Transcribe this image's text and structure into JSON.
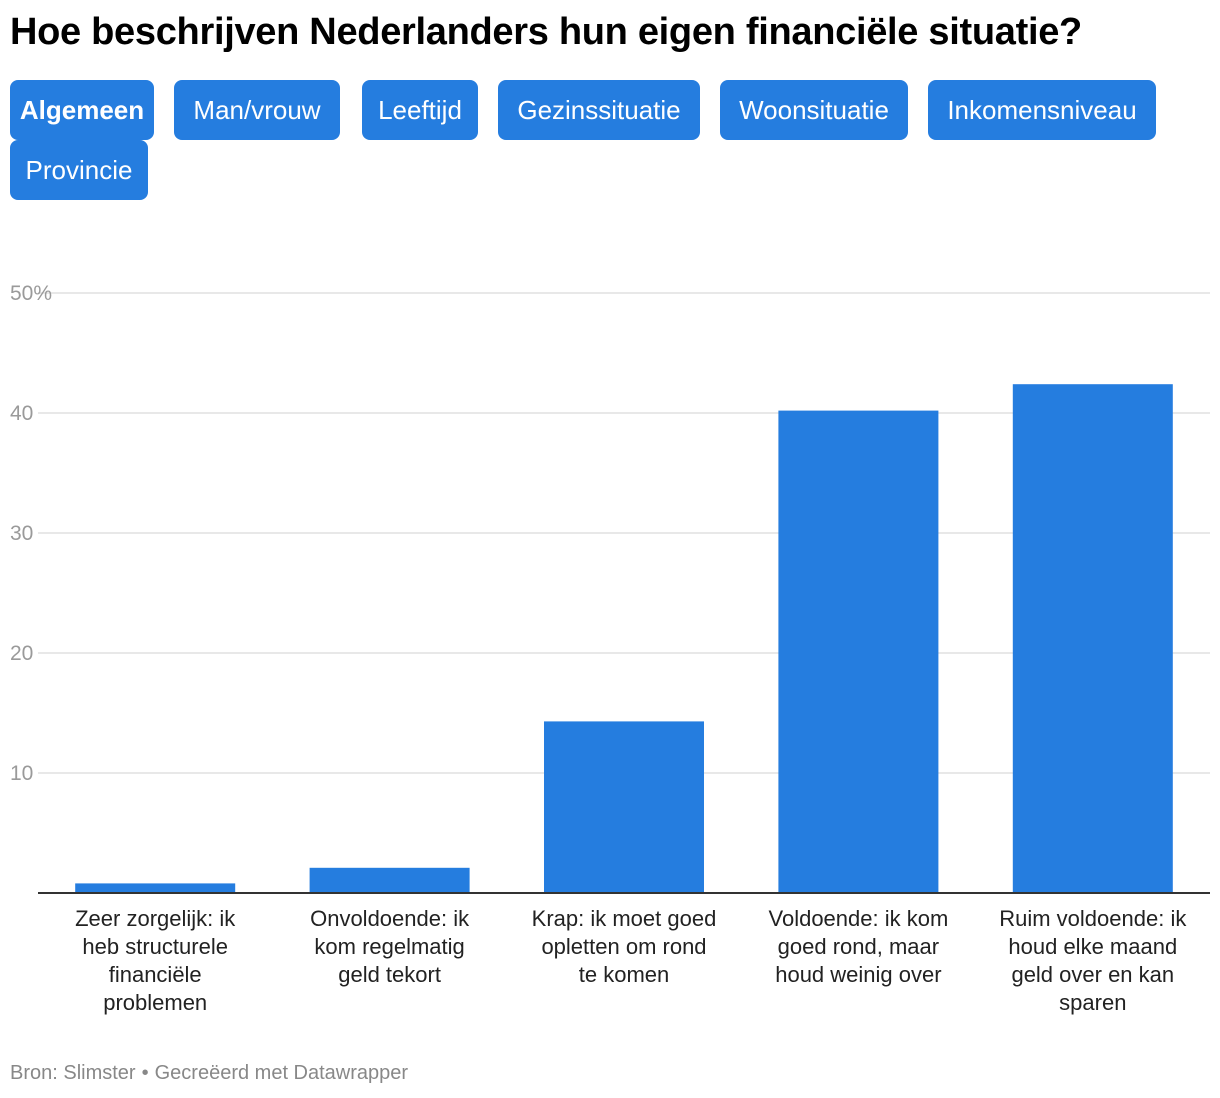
{
  "title": "Hoe beschrijven Nederlanders hun eigen financiële situatie?",
  "tabs": [
    {
      "label": "Algemeen",
      "active": true
    },
    {
      "label": "Man/vrouw",
      "active": false
    },
    {
      "label": "Leeftijd",
      "active": false
    },
    {
      "label": "Gezinssituatie",
      "active": false
    },
    {
      "label": "Woonsituatie",
      "active": false
    },
    {
      "label": "Inkomensniveau",
      "active": false
    },
    {
      "label": "Provincie",
      "active": false
    }
  ],
  "colors": {
    "bar": "#257ddf",
    "tab_bg": "#257ddf",
    "tab_text": "#ffffff",
    "grid": "#e0e0e0",
    "axis": "#333333",
    "tick_text": "#9a9a9a",
    "source_text": "#888888"
  },
  "chart_data": {
    "type": "bar",
    "categories": [
      [
        "Zeer zorgelijk: ik",
        "heb structurele",
        "financiële",
        "problemen"
      ],
      [
        "Onvoldoende: ik",
        "kom regelmatig",
        "geld tekort"
      ],
      [
        "Krap: ik moet goed",
        "opletten om rond",
        "te komen"
      ],
      [
        "Voldoende: ik kom",
        "goed rond, maar",
        "houd weinig over"
      ],
      [
        "Ruim voldoende: ik",
        "houd elke maand",
        "geld over en kan",
        "sparen"
      ]
    ],
    "values": [
      0.8,
      2.1,
      14.3,
      40.2,
      42.4
    ],
    "ylim": [
      0,
      50
    ],
    "yticks": [
      10,
      20,
      30,
      40,
      50
    ],
    "ytick_labels": [
      "10",
      "20",
      "30",
      "40",
      "50%"
    ],
    "title": "Hoe beschrijven Nederlanders hun eigen financiële situatie?",
    "xlabel": "",
    "ylabel": "",
    "grid": true
  },
  "source": {
    "label": "Bron: Slimster",
    "separator": "•",
    "credit": "Gecreëerd met Datawrapper"
  }
}
